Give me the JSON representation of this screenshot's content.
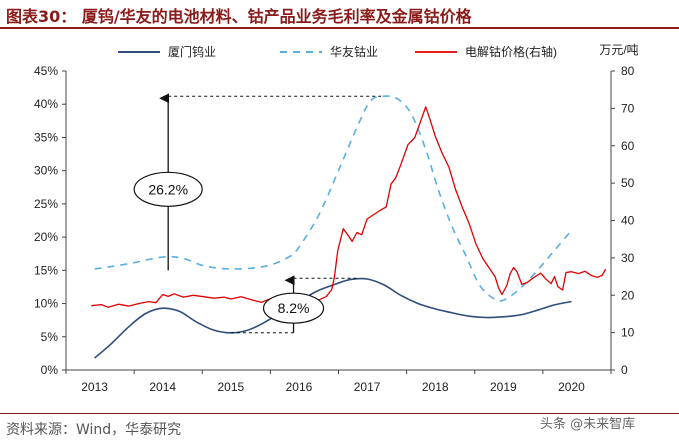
{
  "title": "图表30：  厦钨/华友的电池材料、钴产品业务毛利率及金属钴价格",
  "source": "资料来源：Wind，华泰研究",
  "watermark": "头条 @未来智库",
  "chart_data": {
    "type": "line",
    "xticks": [
      "2013",
      "2014",
      "2015",
      "2016",
      "2017",
      "2018",
      "2019",
      "2020"
    ],
    "left_axis": {
      "ylim": [
        0,
        45
      ],
      "ticks": [
        "0%",
        "5%",
        "10%",
        "15%",
        "20%",
        "25%",
        "30%",
        "35%",
        "40%",
        "45%"
      ]
    },
    "right_axis": {
      "unit": "万元/吨",
      "ylim": [
        0,
        80
      ],
      "ticks": [
        "0",
        "10",
        "20",
        "30",
        "40",
        "50",
        "60",
        "70",
        "80"
      ]
    },
    "legend": [
      "厦门钨业",
      "华友钴业",
      "电解钴价格(右轴)"
    ],
    "series": [
      {
        "name": "厦门钨业",
        "axis": "left",
        "color": "#2e4d7b",
        "points": [
          [
            2013,
            1.8
          ],
          [
            2013.25,
            4.0
          ],
          [
            2013.5,
            6.5
          ],
          [
            2013.75,
            8.5
          ],
          [
            2014,
            9.3
          ],
          [
            2014.25,
            8.8
          ],
          [
            2014.5,
            7.2
          ],
          [
            2014.75,
            6.0
          ],
          [
            2015,
            5.6
          ],
          [
            2015.25,
            6.0
          ],
          [
            2015.5,
            7.2
          ],
          [
            2015.75,
            8.8
          ],
          [
            2016,
            10.3
          ],
          [
            2016.25,
            11.8
          ],
          [
            2016.5,
            12.8
          ],
          [
            2016.75,
            13.6
          ],
          [
            2017,
            13.7
          ],
          [
            2017.25,
            12.8
          ],
          [
            2017.5,
            11.2
          ],
          [
            2017.75,
            10.0
          ],
          [
            2018,
            9.2
          ],
          [
            2018.25,
            8.6
          ],
          [
            2018.5,
            8.1
          ],
          [
            2018.75,
            7.9
          ],
          [
            2019,
            8.0
          ],
          [
            2019.25,
            8.3
          ],
          [
            2019.5,
            9.0
          ],
          [
            2019.75,
            9.8
          ],
          [
            2020,
            10.3
          ]
        ]
      },
      {
        "name": "华友钴业",
        "axis": "left",
        "color": "#5aaee0",
        "points": [
          [
            2013,
            15.2
          ],
          [
            2013.5,
            16.0
          ],
          [
            2014,
            17.0
          ],
          [
            2014.3,
            16.8
          ],
          [
            2014.6,
            15.7
          ],
          [
            2015,
            15.2
          ],
          [
            2015.5,
            15.6
          ],
          [
            2015.85,
            17.0
          ],
          [
            2016,
            18.5
          ],
          [
            2016.3,
            23.5
          ],
          [
            2016.6,
            30.5
          ],
          [
            2016.85,
            36.5
          ],
          [
            2017.05,
            40.5
          ],
          [
            2017.25,
            41.2
          ],
          [
            2017.45,
            40.8
          ],
          [
            2017.65,
            38.5
          ],
          [
            2017.85,
            33.5
          ],
          [
            2018.05,
            27.0
          ],
          [
            2018.25,
            21.5
          ],
          [
            2018.45,
            17.2
          ],
          [
            2018.65,
            12.8
          ],
          [
            2018.85,
            10.8
          ],
          [
            2019,
            10.5
          ],
          [
            2019.25,
            12.3
          ],
          [
            2019.5,
            15.0
          ],
          [
            2019.75,
            18.0
          ],
          [
            2020,
            21.0
          ]
        ]
      },
      {
        "name": "电解钴价格(右轴)",
        "axis": "right",
        "color": "#e00000",
        "points": [
          [
            2012.95,
            17.2
          ],
          [
            2013.1,
            17.5
          ],
          [
            2013.2,
            16.8
          ],
          [
            2013.35,
            17.6
          ],
          [
            2013.5,
            17.1
          ],
          [
            2013.65,
            17.8
          ],
          [
            2013.8,
            18.3
          ],
          [
            2013.9,
            18.0
          ],
          [
            2014,
            20.2
          ],
          [
            2014.08,
            19.7
          ],
          [
            2014.17,
            20.4
          ],
          [
            2014.3,
            19.5
          ],
          [
            2014.45,
            20.0
          ],
          [
            2014.6,
            19.6
          ],
          [
            2014.75,
            19.2
          ],
          [
            2014.9,
            19.5
          ],
          [
            2015,
            19.0
          ],
          [
            2015.15,
            19.6
          ],
          [
            2015.3,
            18.8
          ],
          [
            2015.45,
            18.1
          ],
          [
            2015.6,
            19.2
          ],
          [
            2015.75,
            18.5
          ],
          [
            2015.85,
            18.0
          ],
          [
            2015.95,
            17.9
          ],
          [
            2016.05,
            18.6
          ],
          [
            2016.15,
            18.1
          ],
          [
            2016.3,
            18.8
          ],
          [
            2016.4,
            19.6
          ],
          [
            2016.48,
            21.5
          ],
          [
            2016.52,
            24.8
          ],
          [
            2016.57,
            32.0
          ],
          [
            2016.65,
            37.8
          ],
          [
            2016.72,
            36.1
          ],
          [
            2016.78,
            34.4
          ],
          [
            2016.85,
            36.8
          ],
          [
            2016.92,
            36.2
          ],
          [
            2017,
            40.4
          ],
          [
            2017.1,
            41.6
          ],
          [
            2017.2,
            42.8
          ],
          [
            2017.28,
            43.6
          ],
          [
            2017.35,
            49.7
          ],
          [
            2017.42,
            51.4
          ],
          [
            2017.5,
            55.2
          ],
          [
            2017.6,
            60.3
          ],
          [
            2017.7,
            62.2
          ],
          [
            2017.8,
            67.3
          ],
          [
            2017.86,
            70.4
          ],
          [
            2017.92,
            67.2
          ],
          [
            2018,
            62.6
          ],
          [
            2018.1,
            58.1
          ],
          [
            2018.2,
            54.3
          ],
          [
            2018.3,
            48.2
          ],
          [
            2018.4,
            43.4
          ],
          [
            2018.5,
            39.1
          ],
          [
            2018.6,
            33.6
          ],
          [
            2018.7,
            29.8
          ],
          [
            2018.8,
            27.1
          ],
          [
            2018.88,
            24.9
          ],
          [
            2018.93,
            21.9
          ],
          [
            2018.98,
            20.2
          ],
          [
            2019.05,
            22.6
          ],
          [
            2019.1,
            25.8
          ],
          [
            2019.15,
            27.4
          ],
          [
            2019.2,
            26.3
          ],
          [
            2019.27,
            22.9
          ],
          [
            2019.35,
            23.4
          ],
          [
            2019.45,
            24.8
          ],
          [
            2019.55,
            25.9
          ],
          [
            2019.62,
            24.4
          ],
          [
            2019.7,
            23.1
          ],
          [
            2019.75,
            25.0
          ],
          [
            2019.8,
            22.3
          ],
          [
            2019.87,
            21.4
          ],
          [
            2019.92,
            26.1
          ],
          [
            2020,
            26.3
          ],
          [
            2020.1,
            25.8
          ],
          [
            2020.2,
            26.4
          ],
          [
            2020.3,
            25.2
          ],
          [
            2020.38,
            24.8
          ],
          [
            2020.45,
            25.3
          ],
          [
            2020.5,
            27.0
          ]
        ]
      }
    ],
    "annotations": [
      {
        "label": "26.2%",
        "from": 15.0,
        "to": 41.2
      },
      {
        "label": "8.2%",
        "from": 5.6,
        "to": 13.8
      }
    ]
  }
}
